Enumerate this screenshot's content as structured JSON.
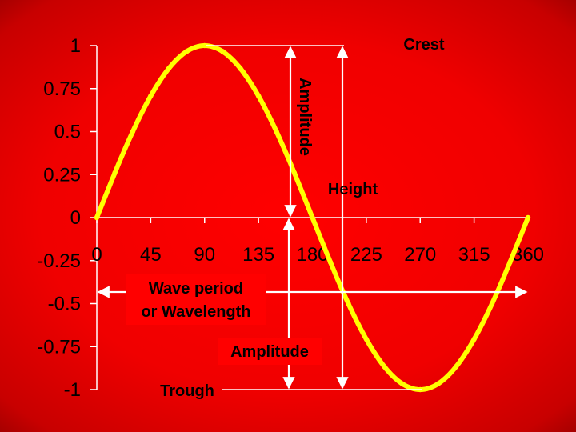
{
  "chart_data": {
    "type": "line",
    "title": "",
    "xlabel": "",
    "ylabel": "",
    "x_ticks": [
      "0",
      "45",
      "90",
      "135",
      "180",
      "225",
      "270",
      "315",
      "360"
    ],
    "y_ticks": [
      "1",
      "0.75",
      "0.5",
      "0.25",
      "0",
      "-0.25",
      "-0.5",
      "-0.75",
      "-1"
    ],
    "xlim": [
      0,
      360
    ],
    "ylim": [
      -1,
      1
    ],
    "grid": false,
    "series": [
      {
        "function": "sine",
        "x": [
          0,
          15,
          30,
          45,
          60,
          75,
          90,
          105,
          120,
          135,
          150,
          165,
          180,
          195,
          210,
          225,
          240,
          255,
          270,
          285,
          300,
          315,
          330,
          345,
          360
        ],
        "values": [
          0,
          0.259,
          0.5,
          0.707,
          0.866,
          0.966,
          1,
          0.966,
          0.866,
          0.707,
          0.5,
          0.259,
          0,
          -0.259,
          -0.5,
          -0.707,
          -0.866,
          -0.966,
          -1,
          -0.966,
          -0.866,
          -0.707,
          -0.5,
          -0.259,
          0
        ],
        "color": "#ffff00"
      }
    ],
    "annotations": {
      "crest": "Crest",
      "amplitude_vertical": "Amplitude",
      "height": "Height",
      "wave_period": [
        "Wave period",
        "or Wavelength"
      ],
      "amplitude_lower": "Amplitude",
      "trough": "Trough"
    }
  },
  "colors": {
    "background": "#ff0000",
    "curve": "#ffff00",
    "text": "#000000",
    "arrows": "#ffffff",
    "axis": "#ffffff"
  }
}
